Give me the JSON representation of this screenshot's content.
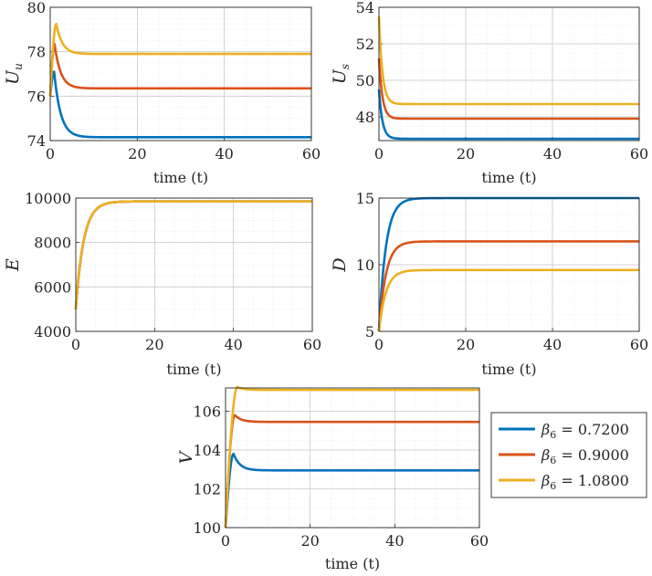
{
  "chart_data": [
    {
      "type": "line",
      "id": "Uu",
      "ylabel_main": "U",
      "ylabel_sub": "u",
      "xlabel": "time (t)",
      "xlim": [
        0,
        60
      ],
      "ylim": [
        74,
        80
      ],
      "xticks": [
        "0",
        "20",
        "40",
        "60"
      ],
      "yticks": [
        "74",
        "76",
        "78",
        "80"
      ],
      "series": [
        {
          "name": "beta6=0.7200",
          "start": 76.0,
          "peak": 77.1,
          "tpeak": 0.9,
          "final": 74.15,
          "tau": 1.5
        },
        {
          "name": "beta6=0.9000",
          "start": 76.0,
          "peak": 78.35,
          "tpeak": 1.0,
          "final": 76.35,
          "tau": 1.4
        },
        {
          "name": "beta6=1.0800",
          "start": 76.0,
          "peak": 79.25,
          "tpeak": 1.4,
          "final": 77.9,
          "tau": 1.4
        }
      ]
    },
    {
      "type": "line",
      "id": "Us",
      "ylabel_main": "U",
      "ylabel_sub": "s",
      "xlabel": "time (t)",
      "xlim": [
        0,
        60
      ],
      "ylim": [
        46.7,
        54
      ],
      "xticks": [
        "0",
        "20",
        "40",
        "60"
      ],
      "yticks": [
        "48",
        "50",
        "52",
        "54"
      ],
      "series": [
        {
          "name": "beta6=0.7200",
          "start": 49.5,
          "final": 46.8,
          "tau": 0.8
        },
        {
          "name": "beta6=0.9000",
          "start": 51.2,
          "final": 47.9,
          "tau": 0.8
        },
        {
          "name": "beta6=1.0800",
          "start": 53.5,
          "final": 48.7,
          "tau": 0.8
        }
      ]
    },
    {
      "type": "line",
      "id": "E",
      "ylabel_main": "E",
      "xlabel": "time (t)",
      "xlim": [
        0,
        60
      ],
      "ylim": [
        4000,
        10000
      ],
      "xticks": [
        "0",
        "20",
        "40",
        "60"
      ],
      "yticks": [
        "4000",
        "6000",
        "8000",
        "10000"
      ],
      "series": [
        {
          "name": "beta6=0.7200",
          "start": 5000,
          "final": 9850,
          "tau": 2.0
        },
        {
          "name": "beta6=0.9000",
          "start": 5000,
          "final": 9850,
          "tau": 2.0
        },
        {
          "name": "beta6=1.0800",
          "start": 5000,
          "final": 9850,
          "tau": 2.0
        }
      ]
    },
    {
      "type": "line",
      "id": "D",
      "ylabel_main": "D",
      "xlabel": "time (t)",
      "xlim": [
        0,
        60
      ],
      "ylim": [
        5,
        15
      ],
      "xticks": [
        "0",
        "20",
        "40",
        "60"
      ],
      "yticks": [
        "5",
        "10",
        "15"
      ],
      "series": [
        {
          "name": "beta6=0.7200",
          "start": 5,
          "final": 15.0,
          "tau": 1.6
        },
        {
          "name": "beta6=0.9000",
          "start": 5,
          "final": 11.75,
          "tau": 1.6
        },
        {
          "name": "beta6=1.0800",
          "start": 5,
          "final": 9.6,
          "tau": 1.6
        }
      ]
    },
    {
      "type": "line",
      "id": "V",
      "ylabel_main": "V",
      "xlabel": "time (t)",
      "xlim": [
        0,
        60
      ],
      "ylim": [
        100,
        107.2
      ],
      "xticks": [
        "0",
        "20",
        "40",
        "60"
      ],
      "yticks": [
        "100",
        "102",
        "104",
        "106"
      ],
      "series": [
        {
          "name": "beta6=0.7200",
          "start": 100,
          "peak": 103.8,
          "tpeak": 1.9,
          "final": 102.95,
          "tau": 1.5
        },
        {
          "name": "beta6=0.9000",
          "start": 100,
          "peak": 105.8,
          "tpeak": 2.2,
          "final": 105.45,
          "tau": 1.5
        },
        {
          "name": "beta6=1.0800",
          "start": 100,
          "peak": 107.25,
          "tpeak": 2.8,
          "final": 107.1,
          "tau": 1.5
        }
      ]
    }
  ],
  "legend": {
    "placement": "right of bottom plot",
    "entries": [
      {
        "symbol": "β",
        "sub": "6",
        "text": " = 0.7200"
      },
      {
        "symbol": "β",
        "sub": "6",
        "text": " = 0.9000"
      },
      {
        "symbol": "β",
        "sub": "6",
        "text": " = 1.0800"
      }
    ]
  },
  "colors": [
    "#0072BD",
    "#D95319",
    "#EDB120"
  ]
}
